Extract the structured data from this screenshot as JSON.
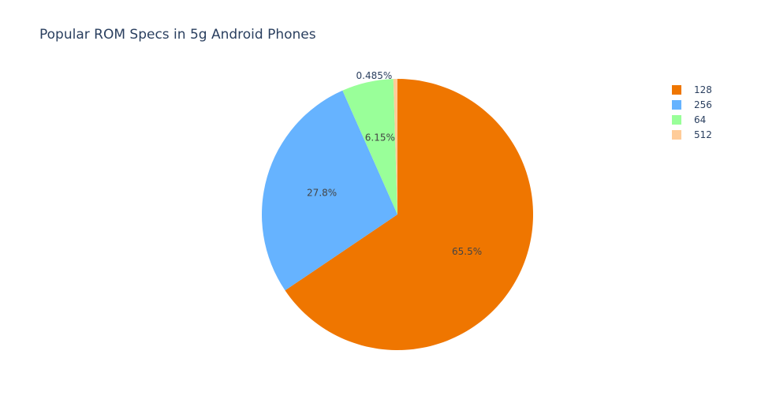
{
  "chart_data": {
    "type": "pie",
    "title": "Popular ROM Specs in 5g Android Phones",
    "categories": [
      "128",
      "256",
      "64",
      "512"
    ],
    "values": [
      65.5,
      27.8,
      6.15,
      0.485
    ],
    "labels": [
      "65.5%",
      "27.8%",
      "6.15%",
      "0.485%"
    ],
    "colors": [
      "#EF7600",
      "#66B3FF",
      "#99FF99",
      "#FFCC99"
    ],
    "direction": "clockwise",
    "start_angle": "top",
    "legend_position": "top-right"
  }
}
